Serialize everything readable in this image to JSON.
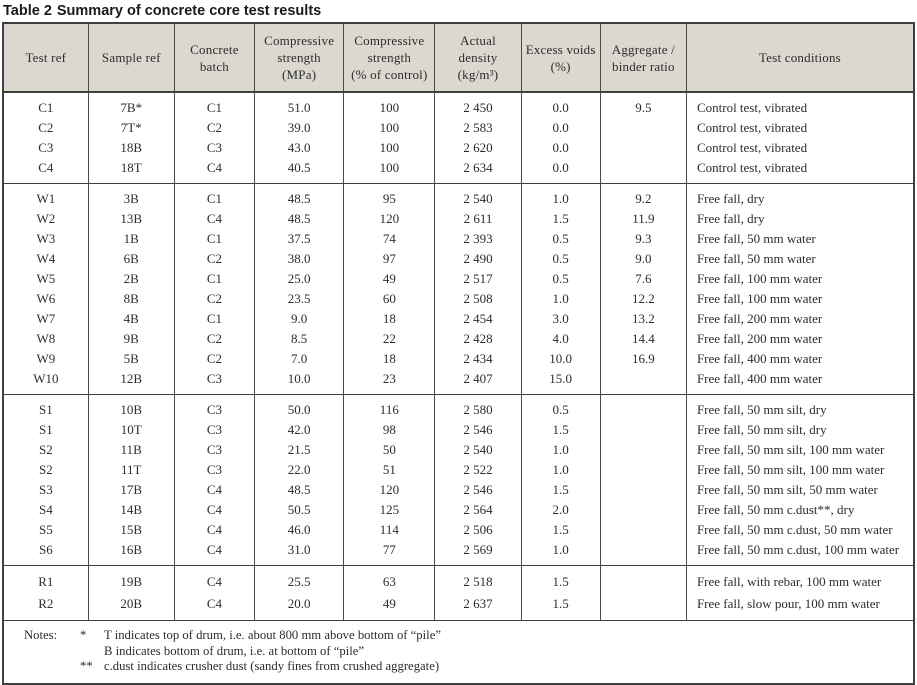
{
  "title": {
    "label": "Table 2",
    "text": "Summary of concrete core test results"
  },
  "table": {
    "columns": [
      "Test ref",
      "Sample ref",
      "Concrete\nbatch",
      "Compressive\nstrength\n(MPa)",
      "Compressive\nstrength\n(% of control)",
      "Actual\ndensity\n(kg/m³)",
      "Excess voids\n(%)",
      "Aggregate /\nbinder ratio",
      "Test conditions"
    ],
    "groups": [
      {
        "name": "control-tests",
        "rows": [
          [
            "C1",
            "7B*",
            "C1",
            "51.0",
            "100",
            "2 450",
            "0.0",
            "9.5",
            "Control test, vibrated"
          ],
          [
            "C2",
            "7T*",
            "C2",
            "39.0",
            "100",
            "2 583",
            "0.0",
            "",
            "Control test, vibrated"
          ],
          [
            "C3",
            "18B",
            "C3",
            "43.0",
            "100",
            "2 620",
            "0.0",
            "",
            "Control test, vibrated"
          ],
          [
            "C4",
            "18T",
            "C4",
            "40.5",
            "100",
            "2 634",
            "0.0",
            "",
            "Control test, vibrated"
          ]
        ]
      },
      {
        "name": "free-fall-water-tests",
        "rows": [
          [
            "W1",
            "3B",
            "C1",
            "48.5",
            "95",
            "2 540",
            "1.0",
            "9.2",
            "Free fall, dry"
          ],
          [
            "W2",
            "13B",
            "C4",
            "48.5",
            "120",
            "2 611",
            "1.5",
            "11.9",
            "Free fall, dry"
          ],
          [
            "W3",
            "1B",
            "C1",
            "37.5",
            "74",
            "2 393",
            "0.5",
            "9.3",
            "Free fall, 50 mm water"
          ],
          [
            "W4",
            "6B",
            "C2",
            "38.0",
            "97",
            "2 490",
            "0.5",
            "9.0",
            "Free fall, 50 mm water"
          ],
          [
            "W5",
            "2B",
            "C1",
            "25.0",
            "49",
            "2 517",
            "0.5",
            "7.6",
            "Free fall, 100 mm water"
          ],
          [
            "W6",
            "8B",
            "C2",
            "23.5",
            "60",
            "2 508",
            "1.0",
            "12.2",
            "Free fall, 100 mm water"
          ],
          [
            "W7",
            "4B",
            "C1",
            "9.0",
            "18",
            "2 454",
            "3.0",
            "13.2",
            "Free fall, 200 mm water"
          ],
          [
            "W8",
            "9B",
            "C2",
            "8.5",
            "22",
            "2 428",
            "4.0",
            "14.4",
            "Free fall, 200 mm water"
          ],
          [
            "W9",
            "5B",
            "C2",
            "7.0",
            "18",
            "2 434",
            "10.0",
            "16.9",
            "Free fall, 400 mm water"
          ],
          [
            "W10",
            "12B",
            "C3",
            "10.0",
            "23",
            "2 407",
            "15.0",
            "",
            "Free fall, 400 mm water"
          ]
        ]
      },
      {
        "name": "silt-and-crusher-dust-tests",
        "rows": [
          [
            "S1",
            "10B",
            "C3",
            "50.0",
            "116",
            "2 580",
            "0.5",
            "",
            "Free fall, 50 mm silt, dry"
          ],
          [
            "S1",
            "10T",
            "C3",
            "42.0",
            "98",
            "2 546",
            "1.5",
            "",
            "Free fall, 50 mm silt, dry"
          ],
          [
            "S2",
            "11B",
            "C3",
            "21.5",
            "50",
            "2 540",
            "1.0",
            "",
            "Free fall, 50 mm silt, 100 mm water"
          ],
          [
            "S2",
            "11T",
            "C3",
            "22.0",
            "51",
            "2 522",
            "1.0",
            "",
            "Free fall, 50 mm silt, 100 mm water"
          ],
          [
            "S3",
            "17B",
            "C4",
            "48.5",
            "120",
            "2 546",
            "1.5",
            "",
            "Free fall, 50 mm silt, 50 mm water"
          ],
          [
            "S4",
            "14B",
            "C4",
            "50.5",
            "125",
            "2 564",
            "2.0",
            "",
            "Free fall, 50 mm c.dust**, dry"
          ],
          [
            "S5",
            "15B",
            "C4",
            "46.0",
            "114",
            "2 506",
            "1.5",
            "",
            "Free fall, 50 mm c.dust, 50 mm water"
          ],
          [
            "S6",
            "16B",
            "C4",
            "31.0",
            "77",
            "2 569",
            "1.0",
            "",
            "Free fall, 50 mm c.dust, 100 mm water"
          ]
        ]
      },
      {
        "name": "rebar-and-slow-pour-tests",
        "rows": [
          [
            "R1",
            "19B",
            "C4",
            "25.5",
            "63",
            "2 518",
            "1.5",
            "",
            "Free fall, with rebar, 100 mm water"
          ],
          [
            "R2",
            "20B",
            "C4",
            "20.0",
            "49",
            "2 637",
            "1.5",
            "",
            "Free fall, slow pour, 100 mm water"
          ]
        ]
      }
    ],
    "notes": {
      "label": "Notes:",
      "items": [
        {
          "marker": "*",
          "lines": [
            "T indicates top of drum, i.e. about 800 mm above bottom of “pile”",
            "B indicates bottom of drum, i.e. at bottom of “pile”"
          ]
        },
        {
          "marker": "**",
          "lines": [
            "c.dust indicates crusher dust (sandy fines from crushed aggregate)"
          ]
        }
      ]
    }
  }
}
